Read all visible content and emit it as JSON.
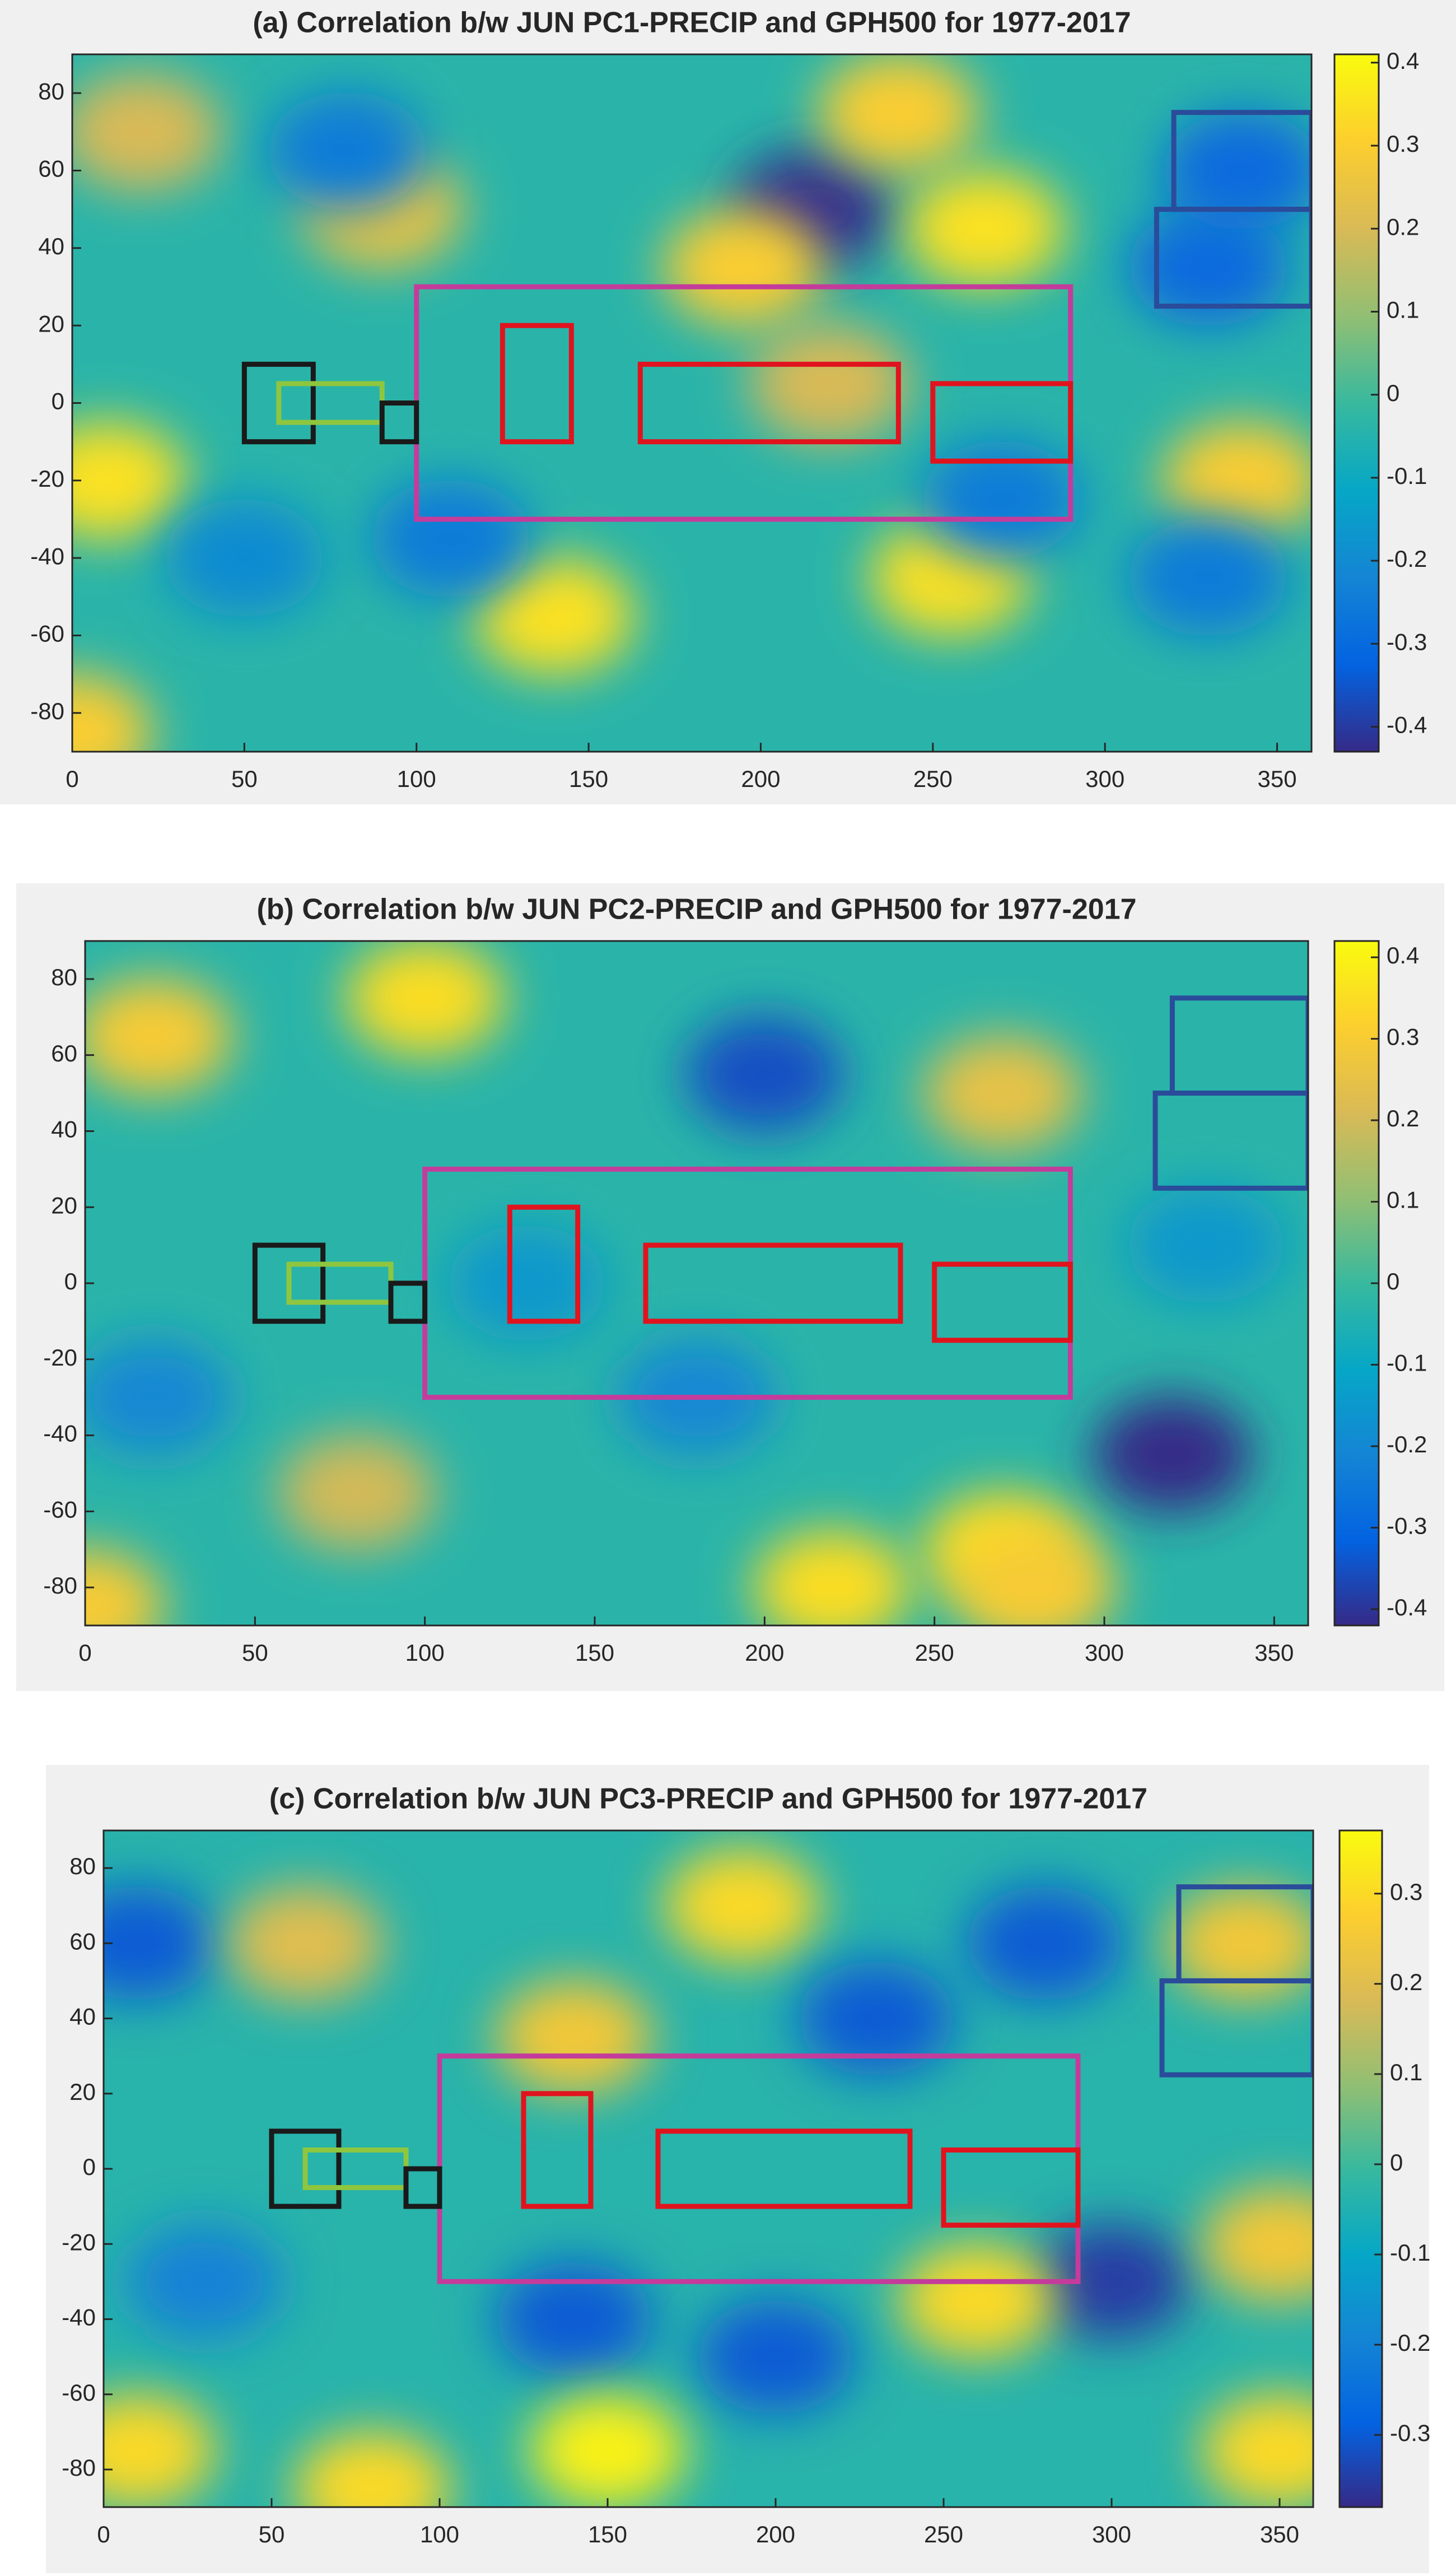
{
  "chart_data": [
    {
      "type": "heatmap",
      "title": "(a) Correlation b/w JUN PC1-PRECIP and GPH500 for 1977-2017",
      "xlim": [
        0,
        360
      ],
      "ylim": [
        -90,
        90
      ],
      "xticks": [
        0,
        50,
        100,
        150,
        200,
        250,
        300,
        350
      ],
      "yticks": [
        -80,
        -60,
        -40,
        -20,
        0,
        20,
        40,
        60,
        80
      ],
      "clim": [
        -0.43,
        0.41
      ],
      "cticks": [
        -0.4,
        -0.3,
        -0.2,
        -0.1,
        0,
        0.1,
        0.2,
        0.3,
        0.4
      ],
      "colormap": [
        "#352a87",
        "#0363e1",
        "#1485d4",
        "#06a7c6",
        "#38b99e",
        "#92bf73",
        "#d9ba56",
        "#fcce2e",
        "#f9fb0e"
      ],
      "features": {
        "lon": [
          215,
          265,
          140,
          255,
          195,
          90,
          10,
          340,
          270,
          110,
          50,
          330,
          0,
          240,
          20,
          220,
          330,
          340,
          80
        ],
        "lat": [
          50,
          45,
          -55,
          -45,
          35,
          50,
          -20,
          -20,
          -25,
          -35,
          -40,
          -45,
          -85,
          75,
          70,
          5,
          35,
          60,
          65
        ],
        "values": [
          -0.42,
          0.35,
          0.35,
          0.35,
          0.3,
          0.25,
          0.35,
          0.3,
          -0.25,
          -0.25,
          -0.2,
          -0.25,
          0.3,
          0.3,
          0.2,
          0.2,
          -0.3,
          -0.3,
          -0.25
        ]
      },
      "regions": [
        {
          "lon": [
            100,
            290
          ],
          "lat": [
            -30,
            30
          ],
          "color": "#c43c9b"
        },
        {
          "lon": [
            125,
            145
          ],
          "lat": [
            -10,
            20
          ],
          "color": "#e0141e"
        },
        {
          "lon": [
            165,
            240
          ],
          "lat": [
            -10,
            10
          ],
          "color": "#e0141e"
        },
        {
          "lon": [
            250,
            290
          ],
          "lat": [
            -15,
            5
          ],
          "color": "#e0141e"
        },
        {
          "lon": [
            50,
            70
          ],
          "lat": [
            -10,
            10
          ],
          "color": "#1a1a1a"
        },
        {
          "lon": [
            60,
            90
          ],
          "lat": [
            -5,
            5
          ],
          "color": "#8ec63f"
        },
        {
          "lon": [
            90,
            100
          ],
          "lat": [
            -10,
            0
          ],
          "color": "#1a1a1a"
        },
        {
          "lon": [
            320,
            360
          ],
          "lat": [
            50,
            75
          ],
          "color": "#2a4c9a"
        },
        {
          "lon": [
            315,
            360
          ],
          "lat": [
            25,
            50
          ],
          "color": "#2a4c9a"
        }
      ]
    },
    {
      "type": "heatmap",
      "title": "(b) Correlation b/w JUN PC2-PRECIP and GPH500 for 1977-2017",
      "xlim": [
        0,
        360
      ],
      "ylim": [
        -90,
        90
      ],
      "xticks": [
        0,
        50,
        100,
        150,
        200,
        250,
        300,
        350
      ],
      "yticks": [
        -80,
        -60,
        -40,
        -20,
        0,
        20,
        40,
        60,
        80
      ],
      "clim": [
        -0.42,
        0.42
      ],
      "cticks": [
        -0.4,
        -0.3,
        -0.2,
        -0.1,
        0,
        0.1,
        0.2,
        0.3,
        0.4
      ],
      "colormap": [
        "#352a87",
        "#0363e1",
        "#1485d4",
        "#06a7c6",
        "#38b99e",
        "#92bf73",
        "#d9ba56",
        "#fcce2e",
        "#f9fb0e"
      ],
      "features": {
        "lon": [
          320,
          270,
          220,
          100,
          20,
          200,
          270,
          80,
          0,
          180,
          330,
          20,
          130,
          280
        ],
        "lat": [
          -45,
          -70,
          -80,
          75,
          65,
          55,
          50,
          -55,
          -85,
          -30,
          10,
          -30,
          0,
          -80
        ],
        "values": [
          -0.42,
          0.35,
          0.35,
          0.35,
          0.3,
          -0.35,
          0.25,
          0.2,
          0.3,
          -0.2,
          -0.15,
          -0.2,
          -0.15,
          0.3
        ]
      },
      "regions": [
        {
          "lon": [
            100,
            290
          ],
          "lat": [
            -30,
            30
          ],
          "color": "#c43c9b"
        },
        {
          "lon": [
            125,
            145
          ],
          "lat": [
            -10,
            20
          ],
          "color": "#e0141e"
        },
        {
          "lon": [
            165,
            240
          ],
          "lat": [
            -10,
            10
          ],
          "color": "#e0141e"
        },
        {
          "lon": [
            250,
            290
          ],
          "lat": [
            -15,
            5
          ],
          "color": "#e0141e"
        },
        {
          "lon": [
            50,
            70
          ],
          "lat": [
            -10,
            10
          ],
          "color": "#1a1a1a"
        },
        {
          "lon": [
            60,
            90
          ],
          "lat": [
            -5,
            5
          ],
          "color": "#8ec63f"
        },
        {
          "lon": [
            90,
            100
          ],
          "lat": [
            -10,
            0
          ],
          "color": "#1a1a1a"
        },
        {
          "lon": [
            320,
            360
          ],
          "lat": [
            50,
            75
          ],
          "color": "#2a4c9a"
        },
        {
          "lon": [
            315,
            360
          ],
          "lat": [
            25,
            50
          ],
          "color": "#2a4c9a"
        }
      ]
    },
    {
      "type": "heatmap",
      "title": "(c) Correlation b/w JUN PC3-PRECIP and GPH500 for 1977-2017",
      "xlim": [
        0,
        360
      ],
      "ylim": [
        -90,
        90
      ],
      "xticks": [
        0,
        50,
        100,
        150,
        200,
        250,
        300,
        350
      ],
      "yticks": [
        -80,
        -60,
        -40,
        -20,
        0,
        20,
        40,
        60,
        80
      ],
      "clim": [
        -0.38,
        0.37
      ],
      "cticks": [
        -0.3,
        -0.2,
        -0.1,
        0,
        0.1,
        0.2,
        0.3
      ],
      "colormap": [
        "#352a87",
        "#0363e1",
        "#1485d4",
        "#06a7c6",
        "#38b99e",
        "#92bf73",
        "#d9ba56",
        "#fcce2e",
        "#f9fb0e"
      ],
      "features": {
        "lon": [
          300,
          260,
          140,
          200,
          10,
          280,
          190,
          340,
          150,
          10,
          350,
          80,
          140,
          350,
          60,
          230,
          30
        ],
        "lat": [
          -30,
          -35,
          -40,
          -50,
          60,
          60,
          70,
          60,
          -75,
          -75,
          -75,
          -85,
          35,
          -20,
          60,
          40,
          -30
        ],
        "values": [
          -0.35,
          0.3,
          -0.3,
          -0.3,
          -0.3,
          -0.3,
          0.3,
          0.25,
          0.35,
          0.3,
          0.3,
          0.3,
          0.25,
          0.25,
          0.2,
          -0.3,
          -0.2
        ]
      },
      "regions": [
        {
          "lon": [
            100,
            290
          ],
          "lat": [
            -30,
            30
          ],
          "color": "#c43c9b"
        },
        {
          "lon": [
            125,
            145
          ],
          "lat": [
            -10,
            20
          ],
          "color": "#e0141e"
        },
        {
          "lon": [
            165,
            240
          ],
          "lat": [
            -10,
            10
          ],
          "color": "#e0141e"
        },
        {
          "lon": [
            250,
            290
          ],
          "lat": [
            -15,
            5
          ],
          "color": "#e0141e"
        },
        {
          "lon": [
            50,
            70
          ],
          "lat": [
            -10,
            10
          ],
          "color": "#1a1a1a"
        },
        {
          "lon": [
            60,
            90
          ],
          "lat": [
            -5,
            5
          ],
          "color": "#8ec63f"
        },
        {
          "lon": [
            90,
            100
          ],
          "lat": [
            -10,
            0
          ],
          "color": "#1a1a1a"
        },
        {
          "lon": [
            320,
            360
          ],
          "lat": [
            50,
            75
          ],
          "color": "#2a4c9a"
        },
        {
          "lon": [
            315,
            360
          ],
          "lat": [
            25,
            50
          ],
          "color": "#2a4c9a"
        }
      ]
    }
  ]
}
